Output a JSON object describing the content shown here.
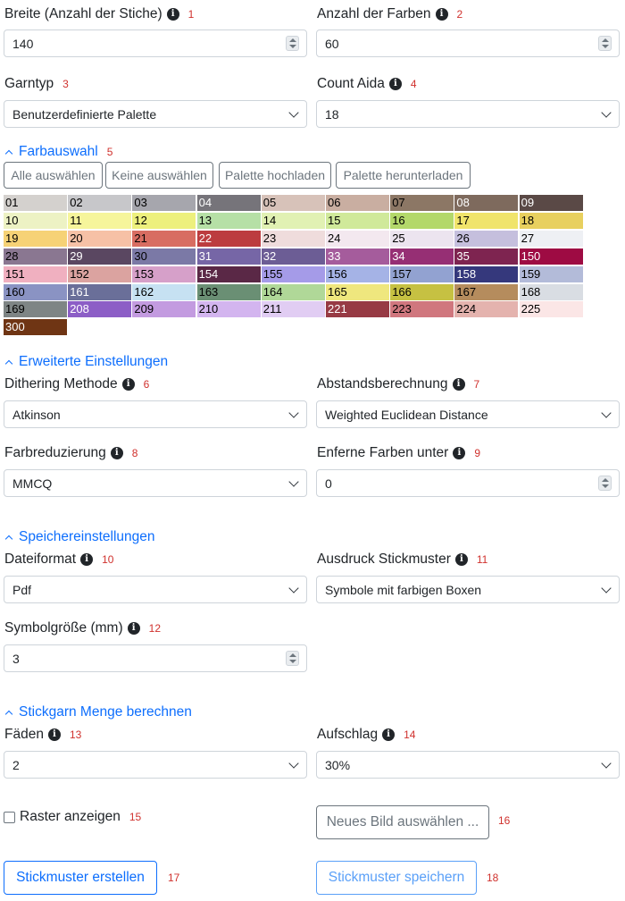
{
  "labels": {
    "breite": "Breite (Anzahl der Stiche)",
    "breite_num": "1",
    "farben": "Anzahl der Farben",
    "farben_num": "2",
    "garntyp": "Garntyp",
    "garntyp_num": "3",
    "count": "Count Aida",
    "count_num": "4",
    "dithering": "Dithering Methode",
    "dithering_num": "6",
    "abstand": "Abstandsberechnung",
    "abstand_num": "7",
    "farbred": "Farbreduzierung",
    "farbred_num": "8",
    "entferne": "Enferne Farben unter",
    "entferne_num": "9",
    "dateiformat": "Dateiformat",
    "dateiformat_num": "10",
    "ausdruck": "Ausdruck Stickmuster",
    "ausdruck_num": "11",
    "symbol": "Symbolgröße (mm)",
    "symbol_num": "12",
    "faeden": "Fäden",
    "faeden_num": "13",
    "aufschlag": "Aufschlag",
    "aufschlag_num": "14",
    "raster": "Raster anzeigen",
    "raster_num": "15",
    "neues_num": "16",
    "erstellen_num": "17",
    "speichern_num": "18"
  },
  "values": {
    "breite": "140",
    "farben": "60",
    "garntyp": "Benutzerdefinierte Palette",
    "count": "18",
    "dithering": "Atkinson",
    "abstand": "Weighted Euclidean Distance",
    "farbred": "MMCQ",
    "entferne": "0",
    "dateiformat": "Pdf",
    "ausdruck": "Symbole mit farbigen Boxen",
    "symbol": "3",
    "faeden": "2",
    "aufschlag": "30%"
  },
  "sections": {
    "farbauswahl": "Farbauswahl",
    "farbauswahl_num": "5",
    "erweitert": "Erweiterte Einstellungen",
    "speicher": "Speichereinstellungen",
    "stickgarn": "Stickgarn Menge berechnen"
  },
  "palette_buttons": {
    "all": "Alle auswählen",
    "none": "Keine auswählen",
    "upload": "Palette hochladen",
    "download": "Palette herunterladen"
  },
  "swatches": [
    {
      "label": "01",
      "color": "#d4d1ce",
      "text": "#000"
    },
    {
      "label": "02",
      "color": "#c7c7ca",
      "text": "#000"
    },
    {
      "label": "03",
      "color": "#a6a6ad",
      "text": "#000"
    },
    {
      "label": "04",
      "color": "#76747a",
      "text": "#fff"
    },
    {
      "label": "05",
      "color": "#d7c2b9",
      "text": "#000"
    },
    {
      "label": "06",
      "color": "#c9aea1",
      "text": "#000"
    },
    {
      "label": "07",
      "color": "#8c7765",
      "text": "#000"
    },
    {
      "label": "08",
      "color": "#7e6a5d",
      "text": "#fff"
    },
    {
      "label": "09",
      "color": "#5a4946",
      "text": "#fff"
    },
    {
      "label": "10",
      "color": "#edf2c4",
      "text": "#000"
    },
    {
      "label": "11",
      "color": "#f6f59b",
      "text": "#000"
    },
    {
      "label": "12",
      "color": "#edf07d",
      "text": "#000"
    },
    {
      "label": "13",
      "color": "#b6e0a6",
      "text": "#000"
    },
    {
      "label": "14",
      "color": "#e1f1b3",
      "text": "#000"
    },
    {
      "label": "15",
      "color": "#d0e99a",
      "text": "#000"
    },
    {
      "label": "16",
      "color": "#b3d86a",
      "text": "#000"
    },
    {
      "label": "17",
      "color": "#f0e46b",
      "text": "#000"
    },
    {
      "label": "18",
      "color": "#e8d05f",
      "text": "#000"
    },
    {
      "label": "19",
      "color": "#f6d276",
      "text": "#000"
    },
    {
      "label": "20",
      "color": "#f6c1a6",
      "text": "#000"
    },
    {
      "label": "21",
      "color": "#d86d62",
      "text": "#000"
    },
    {
      "label": "22",
      "color": "#bc3c3f",
      "text": "#fff"
    },
    {
      "label": "23",
      "color": "#efdcdc",
      "text": "#000"
    },
    {
      "label": "24",
      "color": "#f3e8ef",
      "text": "#000"
    },
    {
      "label": "25",
      "color": "#ece4ef",
      "text": "#000"
    },
    {
      "label": "26",
      "color": "#c5bfdd",
      "text": "#000"
    },
    {
      "label": "27",
      "color": "#eef0f4",
      "text": "#000"
    },
    {
      "label": "28",
      "color": "#8a7791",
      "text": "#000"
    },
    {
      "label": "29",
      "color": "#5a4761",
      "text": "#fff"
    },
    {
      "label": "30",
      "color": "#7b79a6",
      "text": "#000"
    },
    {
      "label": "31",
      "color": "#7666a6",
      "text": "#fff"
    },
    {
      "label": "32",
      "color": "#6c5d95",
      "text": "#fff"
    },
    {
      "label": "33",
      "color": "#a55c9c",
      "text": "#fff"
    },
    {
      "label": "34",
      "color": "#962f74",
      "text": "#fff"
    },
    {
      "label": "35",
      "color": "#7e2450",
      "text": "#fff"
    },
    {
      "label": "150",
      "color": "#9e0b43",
      "text": "#fff"
    },
    {
      "label": "151",
      "color": "#f0b0c0",
      "text": "#000"
    },
    {
      "label": "152",
      "color": "#dba3a0",
      "text": "#000"
    },
    {
      "label": "153",
      "color": "#d6a0c9",
      "text": "#000"
    },
    {
      "label": "154",
      "color": "#5a2846",
      "text": "#fff"
    },
    {
      "label": "155",
      "color": "#a59be8",
      "text": "#000"
    },
    {
      "label": "156",
      "color": "#a5b3e6",
      "text": "#000"
    },
    {
      "label": "157",
      "color": "#92a2d1",
      "text": "#000"
    },
    {
      "label": "158",
      "color": "#35387c",
      "text": "#fff"
    },
    {
      "label": "159",
      "color": "#b3bbd9",
      "text": "#000"
    },
    {
      "label": "160",
      "color": "#8a93c3",
      "text": "#000"
    },
    {
      "label": "161",
      "color": "#6a6f99",
      "text": "#fff"
    },
    {
      "label": "162",
      "color": "#c6e1f2",
      "text": "#000"
    },
    {
      "label": "163",
      "color": "#6a8f74",
      "text": "#000"
    },
    {
      "label": "164",
      "color": "#b0d898",
      "text": "#000"
    },
    {
      "label": "165",
      "color": "#efe77e",
      "text": "#000"
    },
    {
      "label": "166",
      "color": "#c6c142",
      "text": "#000"
    },
    {
      "label": "167",
      "color": "#b58c5d",
      "text": "#000"
    },
    {
      "label": "168",
      "color": "#d9dde3",
      "text": "#000"
    },
    {
      "label": "169",
      "color": "#7e8585",
      "text": "#000"
    },
    {
      "label": "208",
      "color": "#8c5ec6",
      "text": "#fff"
    },
    {
      "label": "209",
      "color": "#c39be0",
      "text": "#000"
    },
    {
      "label": "210",
      "color": "#d3b5ef",
      "text": "#000"
    },
    {
      "label": "211",
      "color": "#e1cdf3",
      "text": "#000"
    },
    {
      "label": "221",
      "color": "#973a44",
      "text": "#fff"
    },
    {
      "label": "223",
      "color": "#d0777e",
      "text": "#000"
    },
    {
      "label": "224",
      "color": "#e4b3ae",
      "text": "#000"
    },
    {
      "label": "225",
      "color": "#fbe6e6",
      "text": "#000"
    },
    {
      "label": "300",
      "color": "#6f3514",
      "text": "#fff"
    }
  ],
  "buttons": {
    "neues": "Neues Bild auswählen ...",
    "erstellen": "Stickmuster erstellen",
    "speichern": "Stickmuster speichern"
  },
  "icons": {
    "info": "info-icon"
  },
  "colors": {
    "accent": "#0d6efd",
    "number": "#d0312d"
  }
}
